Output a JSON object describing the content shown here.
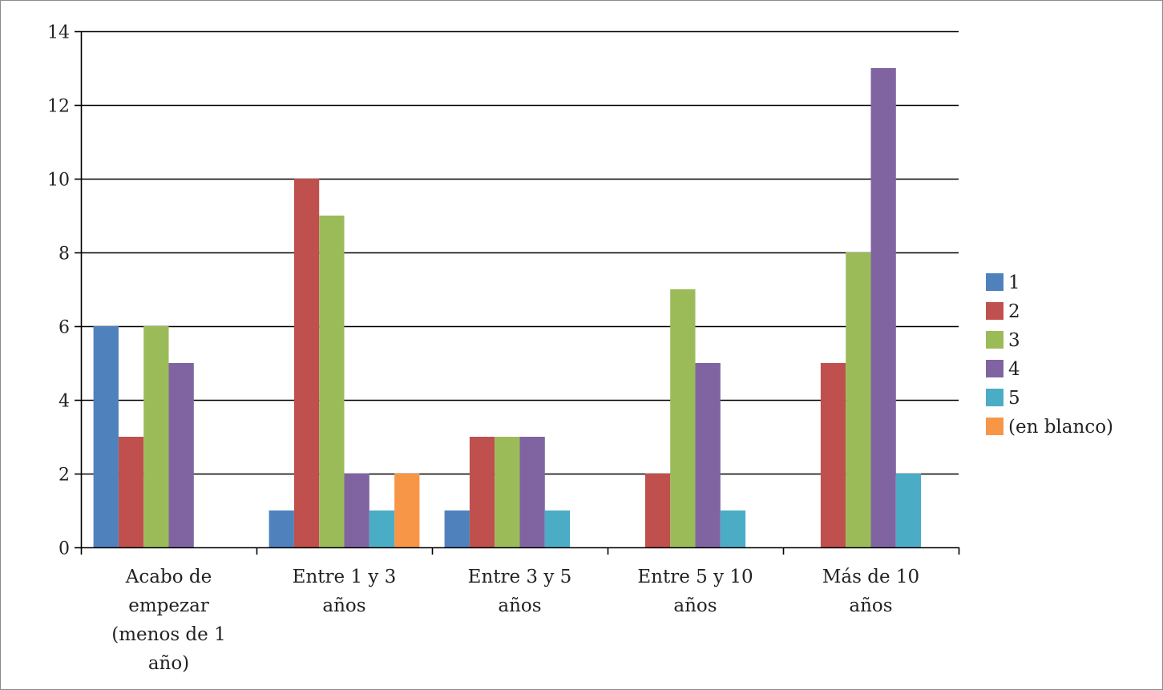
{
  "chart_data": {
    "type": "bar",
    "title": "",
    "xlabel": "",
    "ylabel": "",
    "ylim": [
      0,
      14
    ],
    "yticks": [
      0,
      2,
      4,
      6,
      8,
      10,
      12,
      14
    ],
    "grid": true,
    "legend_position": "right",
    "categories": [
      [
        "Acabo de",
        "empezar",
        "(menos de 1",
        "año)"
      ],
      [
        "Entre 1 y 3",
        "años"
      ],
      [
        "Entre 3 y 5",
        "años"
      ],
      [
        "Entre 5 y 10",
        "años"
      ],
      [
        "Más de 10",
        "años"
      ]
    ],
    "series": [
      {
        "name": "1",
        "color": "#4f81bd",
        "values": [
          6,
          1,
          1,
          null,
          null
        ]
      },
      {
        "name": "2",
        "color": "#c0504d",
        "values": [
          3,
          10,
          3,
          2,
          5
        ]
      },
      {
        "name": "3",
        "color": "#9bbb59",
        "values": [
          6,
          9,
          3,
          7,
          8
        ]
      },
      {
        "name": "4",
        "color": "#8064a2",
        "values": [
          5,
          2,
          3,
          5,
          13
        ]
      },
      {
        "name": "5",
        "color": "#4bacc6",
        "values": [
          null,
          1,
          1,
          1,
          2
        ]
      },
      {
        "name": "(en blanco)",
        "color": "#f79646",
        "values": [
          null,
          2,
          null,
          null,
          null
        ]
      }
    ]
  }
}
